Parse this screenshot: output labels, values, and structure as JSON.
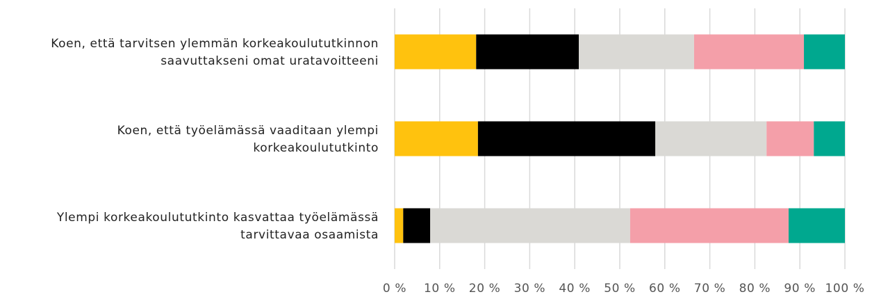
{
  "chart_data": {
    "type": "stacked_bar_horizontal",
    "categories": [
      "Koen, että tarvitsen ylemmän korkeakoulututkinnon\nsaavuttakseni omat uratavoitteeni",
      "Koen, että työelämässä vaaditaan ylempi\nkorkeakoulututkinto",
      "Ylempi korkeakoulututkinto kasvattaa työelämässä\ntarvittavaa osaamista"
    ],
    "series": [
      {
        "color": "#ffc20e",
        "values": [
          18.1,
          18.5,
          1.9
        ]
      },
      {
        "color": "#000000",
        "values": [
          22.8,
          39.4,
          6.0
        ]
      },
      {
        "color": "#dad9d5",
        "values": [
          25.6,
          24.7,
          44.4
        ]
      },
      {
        "color": "#f49fa9",
        "values": [
          24.4,
          10.5,
          35.2
        ]
      },
      {
        "color": "#00a88f",
        "values": [
          9.1,
          6.9,
          12.5
        ]
      }
    ],
    "xlim": [
      0,
      100
    ],
    "xticks": [
      {
        "value": 0,
        "label": "0 %"
      },
      {
        "value": 10,
        "label": "10 %"
      },
      {
        "value": 20,
        "label": "20 %"
      },
      {
        "value": 30,
        "label": "30 %"
      },
      {
        "value": 40,
        "label": "40 %"
      },
      {
        "value": 50,
        "label": "50 %"
      },
      {
        "value": 60,
        "label": "60 %"
      },
      {
        "value": 70,
        "label": "70 %"
      },
      {
        "value": 80,
        "label": "80 %"
      },
      {
        "value": 90,
        "label": "90 %"
      },
      {
        "value": 100,
        "label": "100 %"
      }
    ],
    "grid": true
  }
}
